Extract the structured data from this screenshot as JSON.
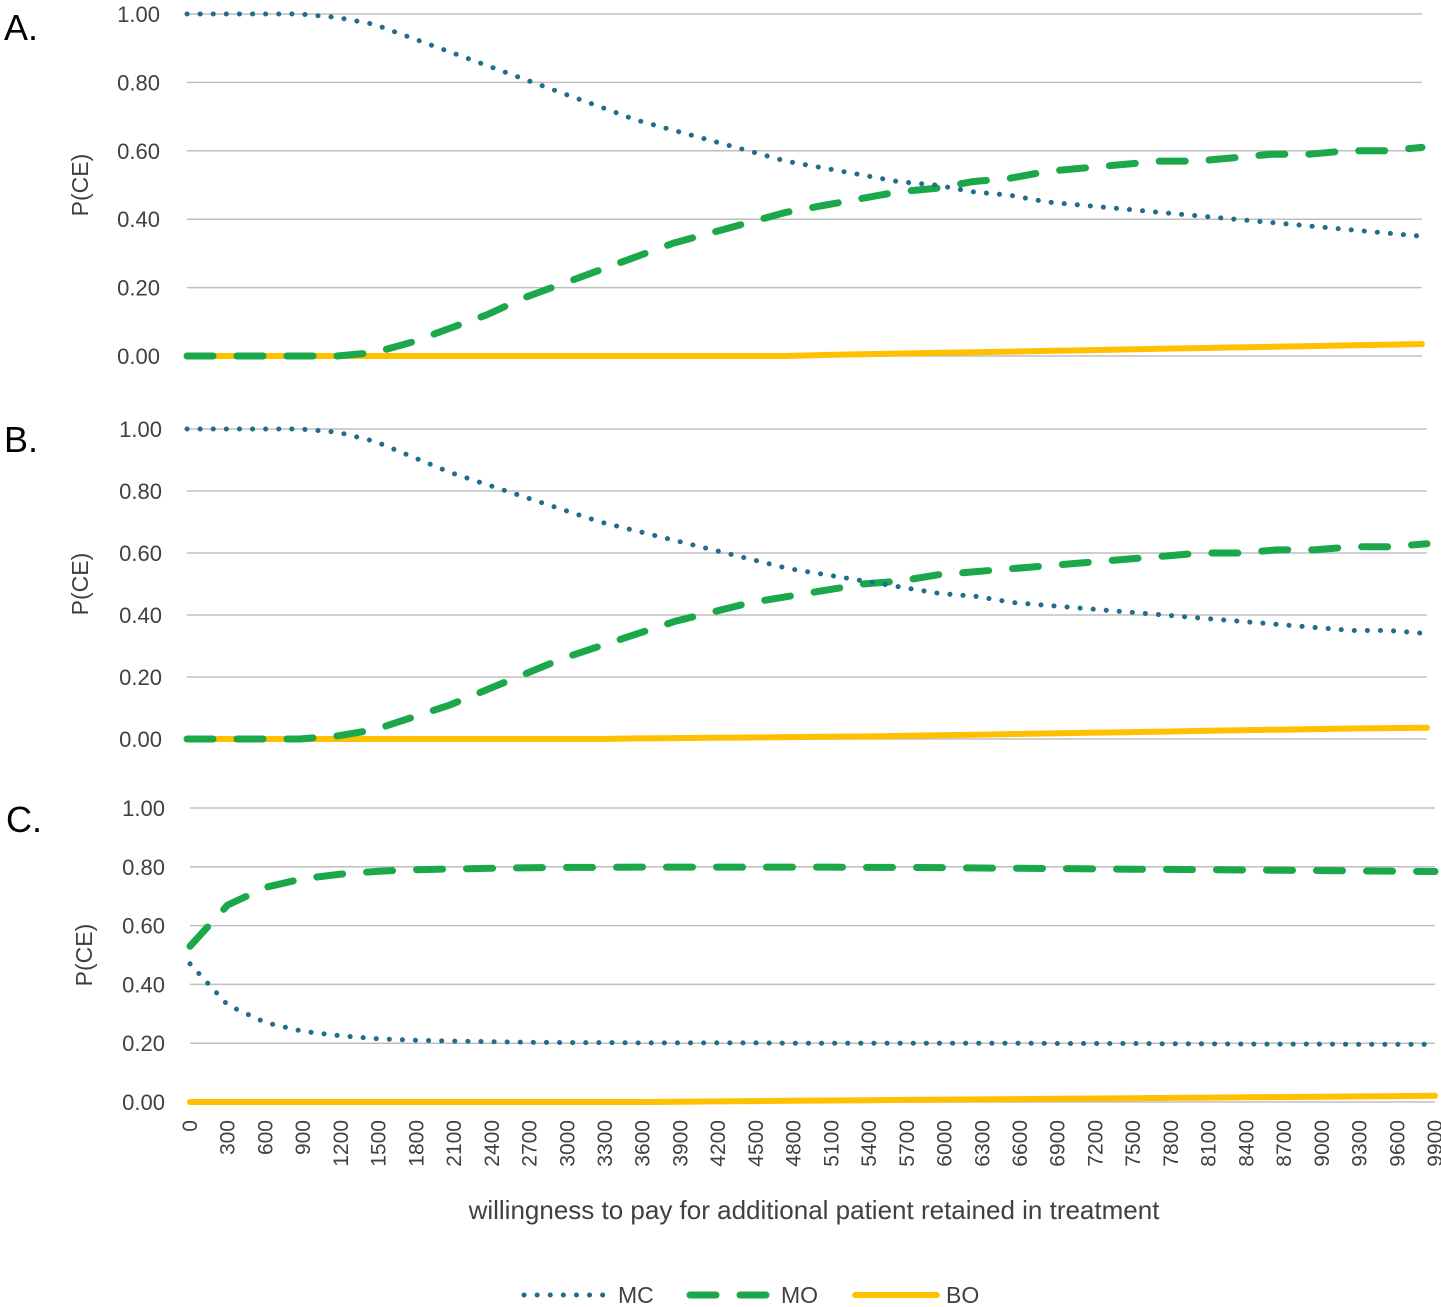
{
  "chart_data": [
    {
      "type": "line",
      "panel_label": "A.",
      "ylabel": "P(CE)",
      "ylim": [
        0,
        1
      ],
      "yticks": [
        "0.00",
        "0.20",
        "0.40",
        "0.60",
        "0.80",
        "1.00"
      ],
      "x": [
        0,
        300,
        600,
        900,
        1200,
        1500,
        1800,
        2100,
        2400,
        2700,
        3000,
        3300,
        3600,
        3900,
        4200,
        4500,
        4800,
        5100,
        5400,
        5700,
        6000,
        6300,
        6600,
        6900,
        7200,
        7500,
        7800,
        8100,
        8400,
        8700,
        9000,
        9300,
        9600,
        9900
      ],
      "series": [
        {
          "name": "MC",
          "values": [
            1.0,
            1.0,
            1.0,
            1.0,
            0.99,
            0.97,
            0.93,
            0.89,
            0.85,
            0.81,
            0.77,
            0.73,
            0.69,
            0.66,
            0.63,
            0.6,
            0.57,
            0.55,
            0.53,
            0.51,
            0.5,
            0.48,
            0.47,
            0.45,
            0.44,
            0.43,
            0.42,
            0.41,
            0.4,
            0.39,
            0.38,
            0.37,
            0.36,
            0.35
          ]
        },
        {
          "name": "MO",
          "values": [
            0.0,
            0.0,
            0.0,
            0.0,
            0.0,
            0.01,
            0.04,
            0.08,
            0.12,
            0.17,
            0.21,
            0.25,
            0.29,
            0.33,
            0.36,
            0.39,
            0.42,
            0.44,
            0.46,
            0.48,
            0.49,
            0.51,
            0.52,
            0.54,
            0.55,
            0.56,
            0.57,
            0.57,
            0.58,
            0.59,
            0.59,
            0.6,
            0.6,
            0.61
          ]
        },
        {
          "name": "BO",
          "values": [
            0.0,
            0.0,
            0.0,
            0.0,
            0.0,
            0.0,
            0.0,
            0.0,
            0.0,
            0.0,
            0.0,
            0.0,
            0.0,
            0.0,
            0.0,
            0.0,
            0.0,
            0.003,
            0.005,
            0.007,
            0.009,
            0.011,
            0.013,
            0.015,
            0.017,
            0.019,
            0.021,
            0.023,
            0.025,
            0.027,
            0.029,
            0.031,
            0.033,
            0.035
          ]
        }
      ]
    },
    {
      "type": "line",
      "panel_label": "B.",
      "ylabel": "P(CE)",
      "ylim": [
        0,
        1
      ],
      "yticks": [
        "0.00",
        "0.20",
        "0.40",
        "0.60",
        "0.80",
        "1.00"
      ],
      "x": [
        0,
        300,
        600,
        900,
        1200,
        1500,
        1800,
        2100,
        2400,
        2700,
        3000,
        3300,
        3600,
        3900,
        4200,
        4500,
        4800,
        5100,
        5400,
        5700,
        6000,
        6300,
        6600,
        6900,
        7200,
        7500,
        7800,
        8100,
        8400,
        8700,
        9000,
        9300,
        9600,
        9900
      ],
      "series": [
        {
          "name": "MC",
          "values": [
            1.0,
            1.0,
            1.0,
            1.0,
            0.99,
            0.96,
            0.91,
            0.86,
            0.82,
            0.78,
            0.74,
            0.7,
            0.67,
            0.64,
            0.61,
            0.58,
            0.55,
            0.53,
            0.51,
            0.49,
            0.47,
            0.46,
            0.44,
            0.43,
            0.42,
            0.41,
            0.4,
            0.39,
            0.38,
            0.37,
            0.36,
            0.35,
            0.35,
            0.34
          ]
        },
        {
          "name": "MO",
          "values": [
            0.0,
            0.0,
            0.0,
            0.0,
            0.01,
            0.03,
            0.07,
            0.11,
            0.16,
            0.21,
            0.26,
            0.3,
            0.34,
            0.38,
            0.41,
            0.44,
            0.46,
            0.48,
            0.5,
            0.51,
            0.53,
            0.54,
            0.55,
            0.56,
            0.57,
            0.58,
            0.59,
            0.6,
            0.6,
            0.61,
            0.61,
            0.62,
            0.62,
            0.63
          ]
        },
        {
          "name": "BO",
          "values": [
            0.0,
            0.0,
            0.0,
            0.0,
            0.0,
            0.0,
            0.0,
            0.0,
            0.0,
            0.0,
            0.0,
            0.0,
            0.002,
            0.003,
            0.004,
            0.005,
            0.006,
            0.007,
            0.008,
            0.01,
            0.012,
            0.014,
            0.016,
            0.018,
            0.02,
            0.022,
            0.024,
            0.026,
            0.028,
            0.03,
            0.032,
            0.034,
            0.035,
            0.036
          ]
        }
      ]
    },
    {
      "type": "line",
      "panel_label": "C.",
      "ylabel": "P(CE)",
      "ylim": [
        0,
        1
      ],
      "yticks": [
        "0.00",
        "0.20",
        "0.40",
        "0.60",
        "0.80",
        "1.00"
      ],
      "x": [
        0,
        300,
        600,
        900,
        1200,
        1500,
        1800,
        2100,
        2400,
        2700,
        3000,
        3300,
        3600,
        3900,
        4200,
        4500,
        4800,
        5100,
        5400,
        5700,
        6000,
        6300,
        6600,
        6900,
        7200,
        7500,
        7800,
        8100,
        8400,
        8700,
        9000,
        9300,
        9600,
        9900
      ],
      "xticks": [
        "0",
        "300",
        "600",
        "900",
        "1200",
        "1500",
        "1800",
        "2100",
        "2400",
        "2700",
        "3000",
        "3300",
        "3600",
        "3900",
        "4200",
        "4500",
        "4800",
        "5100",
        "5400",
        "5700",
        "6000",
        "6300",
        "6600",
        "6900",
        "7200",
        "7500",
        "7800",
        "8100",
        "8400",
        "8700",
        "9000",
        "9300",
        "9600",
        "9900"
      ],
      "xlabel": "willingness to pay for additional patient retained in treatment",
      "series": [
        {
          "name": "MC",
          "values": [
            0.47,
            0.33,
            0.27,
            0.24,
            0.225,
            0.215,
            0.21,
            0.207,
            0.205,
            0.203,
            0.202,
            0.202,
            0.201,
            0.201,
            0.201,
            0.201,
            0.2,
            0.2,
            0.2,
            0.2,
            0.2,
            0.2,
            0.2,
            0.199,
            0.199,
            0.199,
            0.198,
            0.198,
            0.197,
            0.197,
            0.197,
            0.196,
            0.196,
            0.196
          ]
        },
        {
          "name": "MO",
          "values": [
            0.53,
            0.67,
            0.73,
            0.76,
            0.775,
            0.785,
            0.79,
            0.793,
            0.795,
            0.797,
            0.798,
            0.798,
            0.799,
            0.799,
            0.799,
            0.799,
            0.799,
            0.799,
            0.798,
            0.798,
            0.797,
            0.796,
            0.795,
            0.794,
            0.793,
            0.792,
            0.791,
            0.79,
            0.789,
            0.788,
            0.787,
            0.786,
            0.785,
            0.784
          ]
        },
        {
          "name": "BO",
          "values": [
            0.0,
            0.0,
            0.0,
            0.0,
            0.0,
            0.0,
            0.0,
            0.0,
            0.0,
            0.0,
            0.0,
            0.0,
            0.0,
            0.001,
            0.002,
            0.003,
            0.004,
            0.005,
            0.006,
            0.007,
            0.008,
            0.009,
            0.01,
            0.011,
            0.012,
            0.013,
            0.014,
            0.015,
            0.016,
            0.017,
            0.018,
            0.019,
            0.02,
            0.021
          ]
        }
      ]
    }
  ],
  "legend": {
    "placement": "bottom",
    "items": [
      {
        "name": "MC",
        "color": "#1f6e8c",
        "style": "dotted"
      },
      {
        "name": "MO",
        "color": "#1aa84b",
        "style": "dashed"
      },
      {
        "name": "BO",
        "color": "#ffc000",
        "style": "solid"
      }
    ]
  },
  "colors": {
    "MC": "#1f6e8c",
    "MO": "#1aa84b",
    "BO": "#ffc000",
    "grid": "#bfbfbf"
  }
}
